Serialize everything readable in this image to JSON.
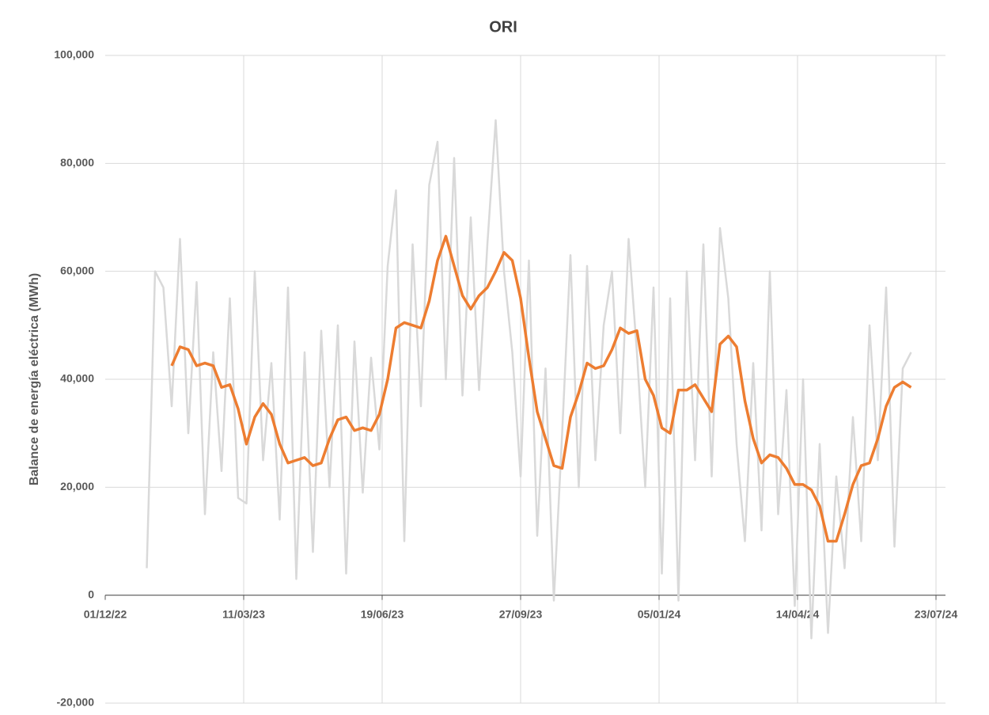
{
  "chart_data": {
    "type": "line",
    "title": "ORI",
    "y_label": "Balance de energía eléctrica (MWh)",
    "grid": true,
    "xlim": [
      "01/12/22",
      "23/07/24"
    ],
    "xticks": [
      "01/12/22",
      "11/03/23",
      "19/06/23",
      "27/09/23",
      "05/01/24",
      "14/04/24",
      "23/07/24"
    ],
    "ylim": [
      -20000,
      100000
    ],
    "yticks": [
      {
        "value": -20000,
        "label": "-20,000"
      },
      0,
      {
        "value": 20000,
        "label": "20,000"
      },
      {
        "value": 40000,
        "label": "40,000"
      },
      {
        "value": 60000,
        "label": "60,000"
      },
      {
        "value": 80000,
        "label": "80,000"
      },
      {
        "value": 100000,
        "label": "100,000"
      }
    ],
    "x": [
      "31/12/22",
      "06/01/23",
      "12/01/23",
      "18/01/23",
      "24/01/23",
      "30/01/23",
      "05/02/23",
      "11/02/23",
      "17/02/23",
      "23/02/23",
      "01/03/23",
      "07/03/23",
      "13/03/23",
      "19/03/23",
      "25/03/23",
      "31/03/23",
      "06/04/23",
      "12/04/23",
      "18/04/23",
      "24/04/23",
      "30/04/23",
      "06/05/23",
      "12/05/23",
      "18/05/23",
      "24/05/23",
      "30/05/23",
      "05/06/23",
      "11/06/23",
      "17/06/23",
      "23/06/23",
      "29/06/23",
      "05/07/23",
      "11/07/23",
      "17/07/23",
      "23/07/23",
      "29/07/23",
      "04/08/23",
      "10/08/23",
      "16/08/23",
      "22/08/23",
      "28/08/23",
      "03/09/23",
      "09/09/23",
      "15/09/23",
      "21/09/23",
      "27/09/23",
      "03/10/23",
      "09/10/23",
      "15/10/23",
      "21/10/23",
      "27/10/23",
      "02/11/23",
      "08/11/23",
      "14/11/23",
      "20/11/23",
      "26/11/23",
      "02/12/23",
      "08/12/23",
      "14/12/23",
      "20/12/23",
      "26/12/23",
      "01/01/24",
      "07/01/24",
      "13/01/24",
      "19/01/24",
      "25/01/24",
      "31/01/24",
      "06/02/24",
      "12/02/24",
      "18/02/24",
      "24/02/24",
      "01/03/24",
      "07/03/24",
      "13/03/24",
      "19/03/24",
      "25/03/24",
      "31/03/24",
      "06/04/24",
      "12/04/24",
      "18/04/24",
      "24/04/24",
      "30/04/24",
      "06/05/24",
      "12/05/24",
      "18/05/24",
      "24/05/24",
      "30/05/24",
      "05/06/24",
      "11/06/24",
      "17/06/24",
      "23/06/24",
      "29/06/24",
      "05/07/24"
    ],
    "series": [
      {
        "color": "#d9d9d9",
        "width": 2.5,
        "values": [
          5000,
          60000,
          57000,
          35000,
          66000,
          30000,
          58000,
          15000,
          45000,
          23000,
          55000,
          18000,
          17000,
          60000,
          25000,
          43000,
          14000,
          57000,
          3000,
          45000,
          8000,
          49000,
          20000,
          50000,
          4000,
          47000,
          19000,
          44000,
          27000,
          61000,
          75000,
          10000,
          65000,
          35000,
          76000,
          84000,
          40000,
          81000,
          37000,
          70000,
          38000,
          65000,
          88000,
          60000,
          45000,
          22000,
          62000,
          11000,
          42000,
          -1000,
          30000,
          63000,
          20000,
          61000,
          25000,
          50000,
          60000,
          30000,
          66000,
          45000,
          20000,
          57000,
          4000,
          55000,
          -1000,
          60000,
          25000,
          65000,
          22000,
          68000,
          55000,
          28000,
          10000,
          43000,
          12000,
          60000,
          15000,
          38000,
          -2000,
          40000,
          -8000,
          28000,
          -7000,
          22000,
          5000,
          33000,
          10000,
          50000,
          25000,
          57000,
          9000,
          42000,
          45000
        ]
      },
      {
        "color": "#ed7d31",
        "width": 3.5,
        "values": [
          null,
          null,
          null,
          42500,
          46000,
          45500,
          42500,
          43000,
          42500,
          38500,
          39000,
          34500,
          28000,
          33000,
          35500,
          33500,
          28000,
          24500,
          25000,
          25500,
          24000,
          24500,
          29000,
          32500,
          33000,
          30500,
          31000,
          30500,
          33500,
          40000,
          49500,
          50500,
          50000,
          49500,
          54500,
          62000,
          66500,
          61000,
          55500,
          53000,
          55500,
          57000,
          60000,
          63500,
          62000,
          55000,
          44000,
          34000,
          29000,
          24000,
          23500,
          33000,
          37500,
          43000,
          42000,
          42500,
          45500,
          49500,
          48500,
          49000,
          40000,
          37000,
          31000,
          30000,
          38000,
          38000,
          39000,
          36500,
          34000,
          46500,
          48000,
          46000,
          36000,
          29000,
          24500,
          26000,
          25500,
          23500,
          20500,
          20500,
          19500,
          16500,
          10000,
          10000,
          15000,
          20500,
          24000,
          24500,
          29000,
          35000,
          38500,
          39500,
          38500
        ]
      }
    ]
  }
}
